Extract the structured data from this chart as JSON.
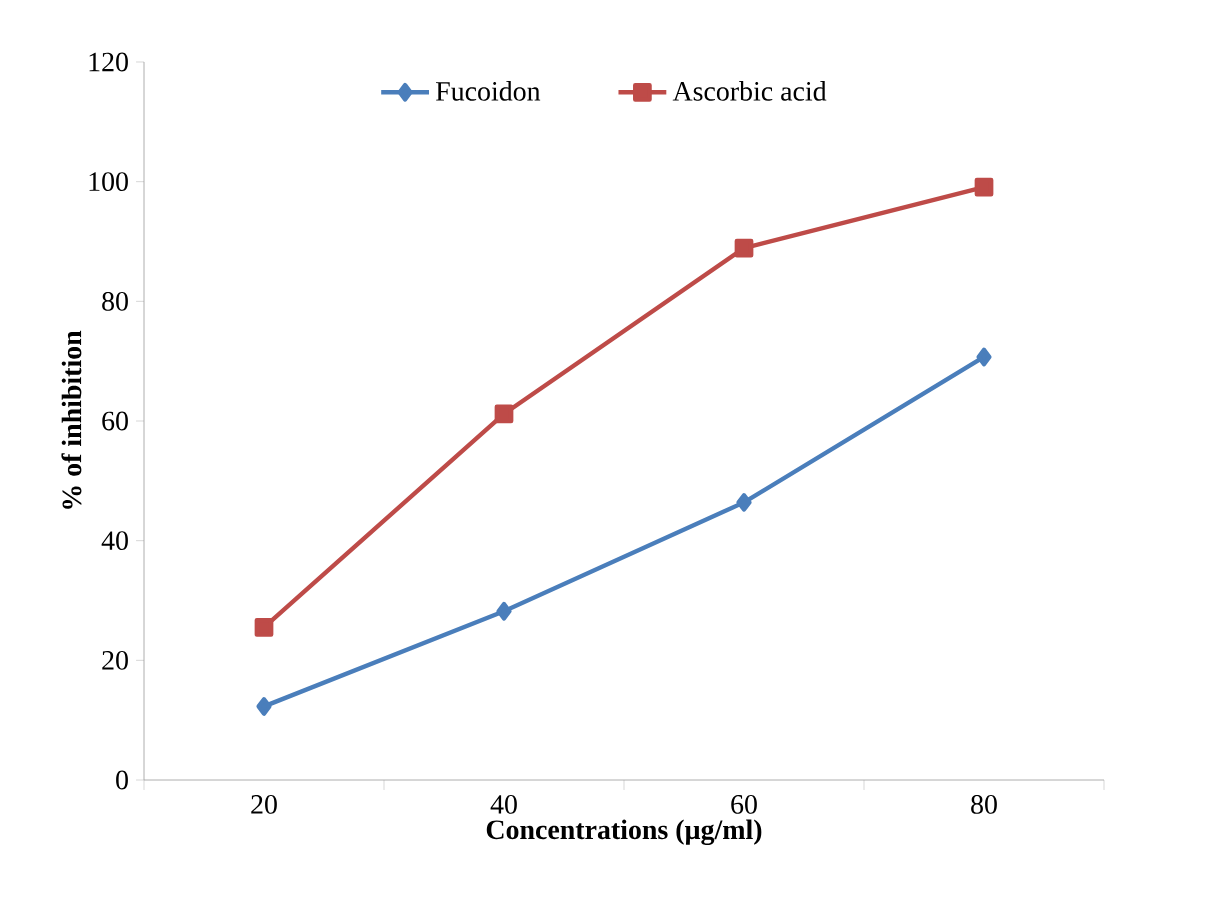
{
  "chart_data": {
    "type": "line",
    "xlabel": "Concentrations (µg/ml)",
    "ylabel": "% of inhibition",
    "categories": [
      "20",
      "40",
      "60",
      "80"
    ],
    "series": [
      {
        "name": "Fucoidon",
        "color": "#4a7ebb",
        "marker": "diamond",
        "values": [
          12.3,
          28.2,
          46.4,
          70.7
        ]
      },
      {
        "name": "Ascorbic acid",
        "color": "#be4b48",
        "marker": "square",
        "values": [
          25.5,
          61.2,
          88.9,
          99.1
        ]
      }
    ],
    "ylim": [
      0,
      120
    ],
    "yticks": [
      0,
      20,
      40,
      60,
      80,
      100,
      120
    ],
    "grid": false,
    "legend": "top"
  }
}
